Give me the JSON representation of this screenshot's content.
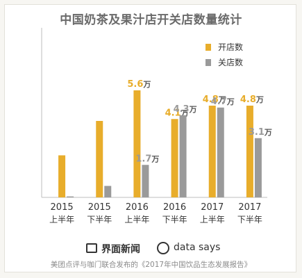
{
  "chart_data": {
    "type": "bar",
    "title": "中国奶茶及果汁店开关店数量统计",
    "categories": [
      [
        "2015",
        "上半年"
      ],
      [
        "2015",
        "下半年"
      ],
      [
        "2016",
        "上半年"
      ],
      [
        "2016",
        "下半年"
      ],
      [
        "2017",
        "上半年"
      ],
      [
        "2017",
        "下半年"
      ]
    ],
    "series": [
      {
        "name": "开店数",
        "color": "#e8ad2b",
        "values": [
          2.2,
          4.0,
          5.6,
          4.1,
          4.8,
          4.8
        ],
        "labels": [
          "",
          "",
          "5.6万",
          "4.1万",
          "4.8万",
          "4.8万"
        ]
      },
      {
        "name": "关店数",
        "color": "#9a9a9a",
        "values": [
          0.05,
          0.6,
          1.7,
          4.3,
          4.7,
          3.1
        ],
        "labels": [
          "",
          "",
          "1.7万",
          "4.3万",
          "4.7万",
          "3.1万"
        ]
      }
    ],
    "ylim": [
      0,
      6
    ],
    "legend_position": "top-right",
    "grid": false
  },
  "footer": {
    "brand1": "界面新闻",
    "brand2": "data says",
    "source": "美团点评与咖门联合发布的《2017年中国饮品生态发展报告》"
  }
}
